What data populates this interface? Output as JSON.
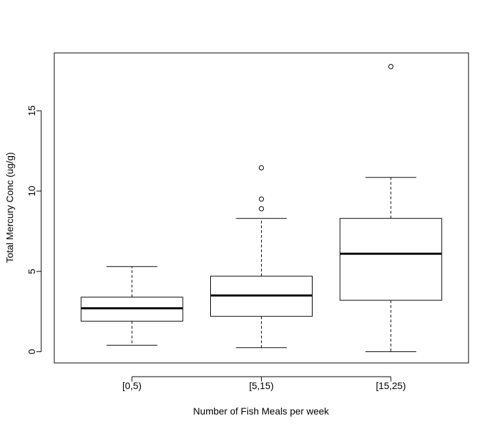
{
  "chart_data": {
    "type": "box",
    "title": "",
    "xlabel": "Number of Fish Meals per week",
    "ylabel": "Total Mercury Conc (ug/g)",
    "ylim": [
      -0.7,
      18.6
    ],
    "yticks": [
      0,
      5,
      10,
      15
    ],
    "ytick_labels": [
      "0",
      "5",
      "10",
      "15"
    ],
    "grid": false,
    "categories": [
      "[0,5)",
      "[5,15)",
      "[15,25)"
    ],
    "boxes": [
      {
        "category": "[0,5)",
        "whisker_low": 0.4,
        "q1": 1.9,
        "median": 2.7,
        "q3": 3.4,
        "whisker_high": 5.3,
        "outliers": []
      },
      {
        "category": "[5,15)",
        "whisker_low": 0.25,
        "q1": 2.2,
        "median": 3.5,
        "q3": 4.7,
        "whisker_high": 8.3,
        "outliers": [
          8.9,
          9.5,
          11.45
        ]
      },
      {
        "category": "[15,25)",
        "whisker_low": 0.0,
        "q1": 3.2,
        "median": 6.1,
        "q3": 8.3,
        "whisker_high": 10.85,
        "outliers": [
          17.75
        ]
      }
    ]
  }
}
